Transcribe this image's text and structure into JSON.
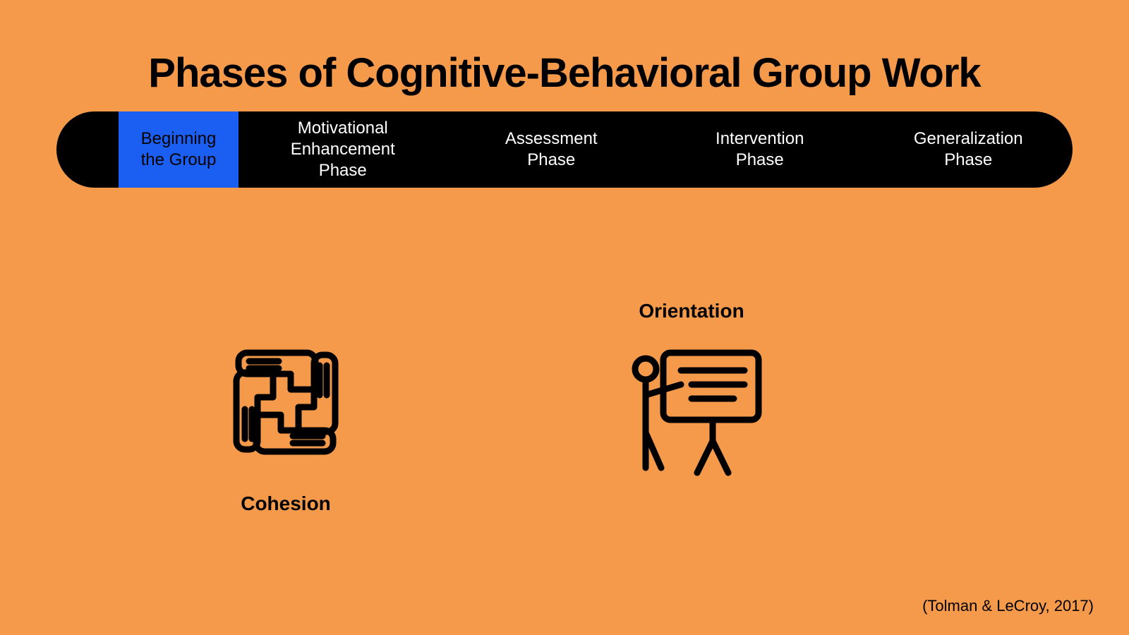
{
  "slide": {
    "background_color": "#f59a4b",
    "title": "Phases of Cognitive-Behavioral Group Work",
    "title_fontsize": 58,
    "title_color": "#000000",
    "citation": "(Tolman & LeCroy, 2017)",
    "citation_fontsize": 22,
    "citation_color": "#000000"
  },
  "phase_bar": {
    "background_color": "#000000",
    "active_background_color": "#1b5ff2",
    "active_text_color": "#000000",
    "inactive_text_color": "#ffffff",
    "fontsize": 24,
    "items": [
      {
        "label": "Beginning\nthe Group",
        "active": true
      },
      {
        "label": "Motivational\nEnhancement\nPhase",
        "active": false
      },
      {
        "label": "Assessment\nPhase",
        "active": false
      },
      {
        "label": "Intervention\nPhase",
        "active": false
      },
      {
        "label": "Generalization\nPhase",
        "active": false
      }
    ]
  },
  "concepts": {
    "cohesion": {
      "label": "Cohesion",
      "label_fontsize": 28
    },
    "orientation": {
      "label": "Orientation",
      "label_fontsize": 28
    }
  },
  "icon_color": "#000000"
}
